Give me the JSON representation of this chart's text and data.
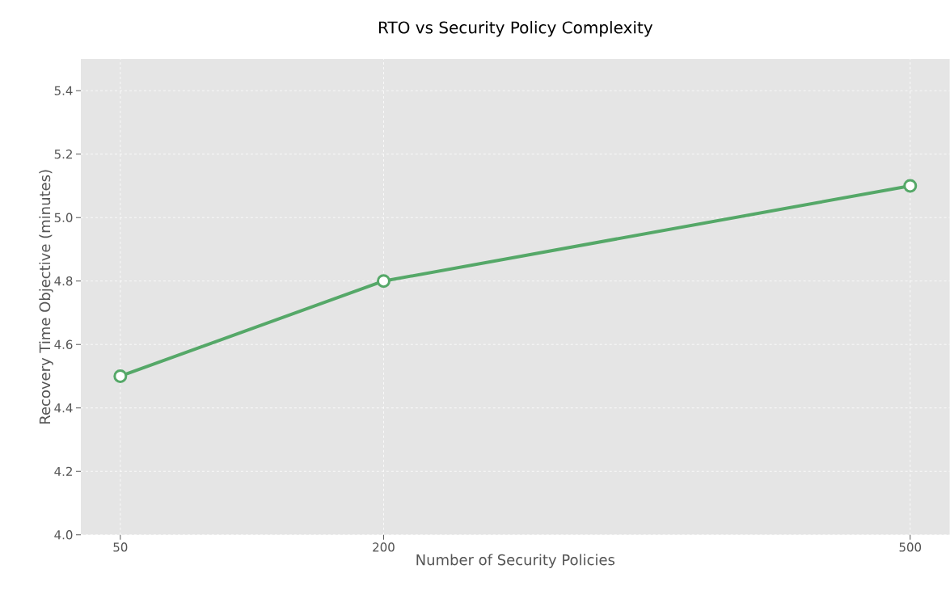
{
  "chart_data": {
    "type": "line",
    "title": "RTO vs Security Policy Complexity",
    "xlabel": "Number of Security Policies",
    "ylabel": "Recovery Time Objective (minutes)",
    "x": [
      50,
      200,
      500
    ],
    "series": [
      {
        "color": "#55a868",
        "values": [
          4.5,
          4.8,
          5.1
        ]
      }
    ],
    "xlim": [
      27.5,
      522.5
    ],
    "xticks": [
      50,
      200,
      500
    ],
    "ylim": [
      4.0,
      5.5
    ],
    "yticks": [
      {
        "value": 4.0,
        "label": "4.0"
      },
      4.2,
      4.4,
      4.6,
      4.8,
      {
        "value": 5.0,
        "label": "5.0"
      },
      5.2,
      5.4
    ],
    "grid": true,
    "marker": "circle",
    "line_style": "solid"
  }
}
